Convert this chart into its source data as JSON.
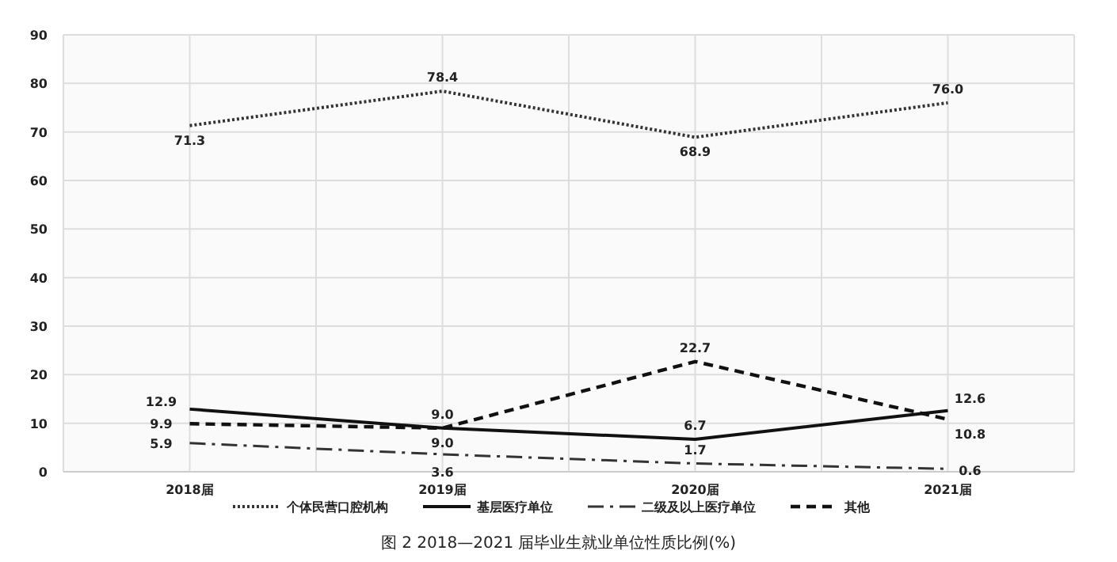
{
  "chart_data": {
    "type": "line",
    "title": "图 2 2018—2021 届毕业生就业单位性质比例(%)",
    "categories": [
      "2018届",
      "2019届",
      "2020届",
      "2021届"
    ],
    "series": [
      {
        "name": "个体民营口腔机构",
        "color": "#333333",
        "line_style": "dotted",
        "values": [
          71.3,
          78.4,
          68.9,
          76.0
        ],
        "value_labels": [
          "71.3",
          "78.4",
          "68.9",
          "76.0"
        ]
      },
      {
        "name": "基层医疗单位",
        "color": "#111111",
        "line_style": "solid",
        "values": [
          12.9,
          9.0,
          6.7,
          12.6
        ],
        "value_labels": [
          "12.9",
          "9.0",
          "6.7",
          "12.6"
        ]
      },
      {
        "name": "二级及以上医疗单位",
        "color": "#333333",
        "line_style": "dashdot",
        "values": [
          5.9,
          3.6,
          1.7,
          0.6
        ],
        "value_labels": [
          "5.9",
          "3.6",
          "1.7",
          "0.6"
        ]
      },
      {
        "name": "其他",
        "color": "#111111",
        "line_style": "dashed",
        "values": [
          9.9,
          9.0,
          22.7,
          10.8
        ],
        "value_labels": [
          "9.9",
          "9.0",
          "22.7",
          "10.8"
        ]
      }
    ],
    "ylim": [
      0,
      90
    ],
    "yticks": [
      0,
      10,
      20,
      30,
      40,
      50,
      60,
      70,
      80,
      90
    ],
    "grid": true,
    "legend": "bottom",
    "marker": "none"
  }
}
